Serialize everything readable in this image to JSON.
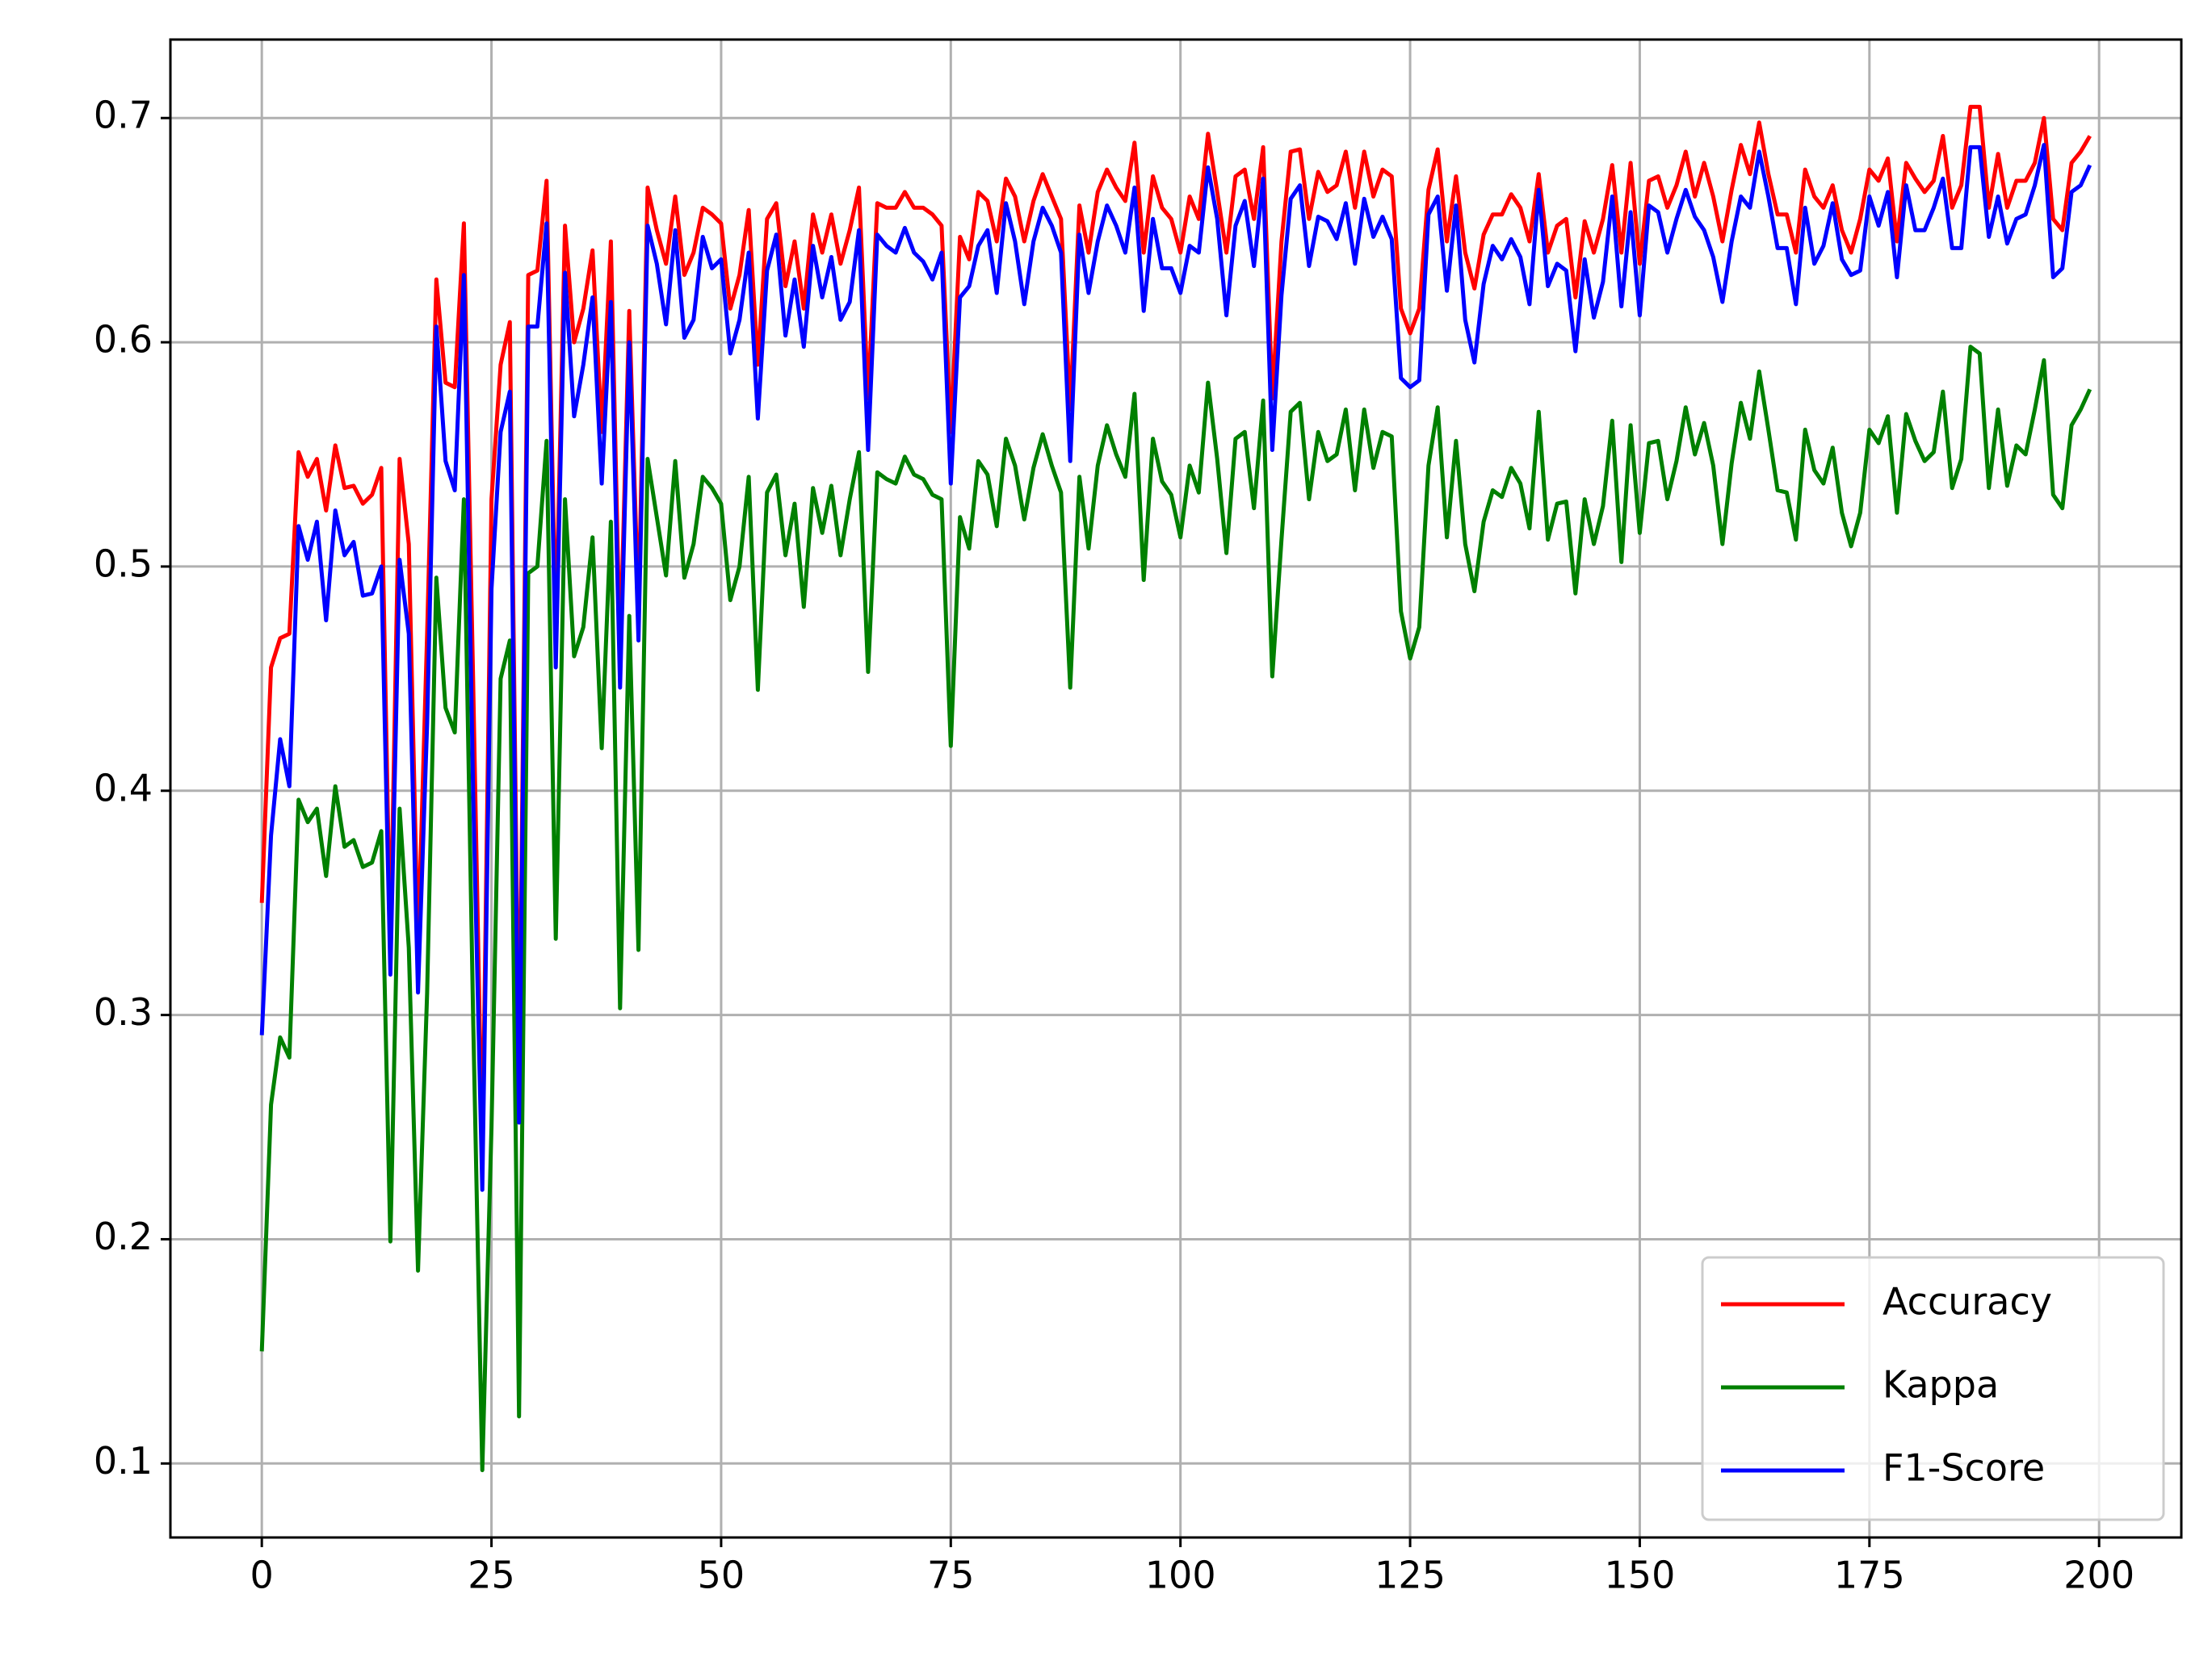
{
  "chart_data": {
    "type": "line",
    "x": [
      0,
      1,
      2,
      3,
      4,
      5,
      6,
      7,
      8,
      9,
      10,
      11,
      12,
      13,
      14,
      15,
      16,
      17,
      18,
      19,
      20,
      21,
      22,
      23,
      24,
      25,
      26,
      27,
      28,
      29,
      30,
      31,
      32,
      33,
      34,
      35,
      36,
      37,
      38,
      39,
      40,
      41,
      42,
      43,
      44,
      45,
      46,
      47,
      48,
      49,
      50,
      51,
      52,
      53,
      54,
      55,
      56,
      57,
      58,
      59,
      60,
      61,
      62,
      63,
      64,
      65,
      66,
      67,
      68,
      69,
      70,
      71,
      72,
      73,
      74,
      75,
      76,
      77,
      78,
      79,
      80,
      81,
      82,
      83,
      84,
      85,
      86,
      87,
      88,
      89,
      90,
      91,
      92,
      93,
      94,
      95,
      96,
      97,
      98,
      99,
      100,
      101,
      102,
      103,
      104,
      105,
      106,
      107,
      108,
      109,
      110,
      111,
      112,
      113,
      114,
      115,
      116,
      117,
      118,
      119,
      120,
      121,
      122,
      123,
      124,
      125,
      126,
      127,
      128,
      129,
      130,
      131,
      132,
      133,
      134,
      135,
      136,
      137,
      138,
      139,
      140,
      141,
      142,
      143,
      144,
      145,
      146,
      147,
      148,
      149,
      150,
      151,
      152,
      153,
      154,
      155,
      156,
      157,
      158,
      159,
      160,
      161,
      162,
      163,
      164,
      165,
      166,
      167,
      168,
      169,
      170,
      171,
      172,
      173,
      174,
      175,
      176,
      177,
      178,
      179,
      180,
      181,
      182,
      183,
      184,
      185,
      186,
      187,
      188,
      189,
      190,
      191,
      192,
      193,
      194,
      195,
      196,
      197,
      198,
      199
    ],
    "series": [
      {
        "name": "Accuracy",
        "color": "#ff0000",
        "values": [
          0.35,
          0.455,
          0.468,
          0.47,
          0.551,
          0.54,
          0.548,
          0.525,
          0.554,
          0.535,
          0.536,
          0.528,
          0.532,
          0.544,
          0.33,
          0.548,
          0.51,
          0.33,
          0.47,
          0.628,
          0.582,
          0.58,
          0.653,
          0.45,
          0.235,
          0.53,
          0.59,
          0.609,
          0.27,
          0.63,
          0.632,
          0.672,
          0.47,
          0.652,
          0.6,
          0.615,
          0.641,
          0.56,
          0.645,
          0.46,
          0.614,
          0.48,
          0.669,
          0.65,
          0.635,
          0.665,
          0.63,
          0.64,
          0.66,
          0.657,
          0.653,
          0.615,
          0.63,
          0.659,
          0.59,
          0.655,
          0.662,
          0.625,
          0.645,
          0.615,
          0.657,
          0.64,
          0.657,
          0.635,
          0.65,
          0.669,
          0.575,
          0.662,
          0.66,
          0.66,
          0.667,
          0.66,
          0.66,
          0.657,
          0.652,
          0.56,
          0.647,
          0.637,
          0.667,
          0.663,
          0.645,
          0.673,
          0.665,
          0.645,
          0.663,
          0.675,
          0.665,
          0.655,
          0.57,
          0.661,
          0.64,
          0.667,
          0.677,
          0.669,
          0.663,
          0.689,
          0.64,
          0.674,
          0.66,
          0.655,
          0.64,
          0.665,
          0.655,
          0.693,
          0.667,
          0.64,
          0.674,
          0.677,
          0.655,
          0.687,
          0.575,
          0.645,
          0.685,
          0.686,
          0.655,
          0.676,
          0.667,
          0.67,
          0.685,
          0.66,
          0.685,
          0.665,
          0.677,
          0.674,
          0.615,
          0.604,
          0.615,
          0.668,
          0.686,
          0.645,
          0.674,
          0.64,
          0.624,
          0.648,
          0.657,
          0.657,
          0.666,
          0.66,
          0.645,
          0.675,
          0.64,
          0.652,
          0.655,
          0.62,
          0.654,
          0.64,
          0.655,
          0.679,
          0.64,
          0.68,
          0.635,
          0.672,
          0.674,
          0.66,
          0.67,
          0.685,
          0.665,
          0.68,
          0.665,
          0.645,
          0.668,
          0.688,
          0.675,
          0.698,
          0.675,
          0.657,
          0.657,
          0.64,
          0.677,
          0.665,
          0.66,
          0.67,
          0.65,
          0.64,
          0.655,
          0.677,
          0.672,
          0.682,
          0.645,
          0.68,
          0.673,
          0.667,
          0.672,
          0.692,
          0.66,
          0.67,
          0.705,
          0.705,
          0.66,
          0.684,
          0.66,
          0.672,
          0.672,
          0.68,
          0.7,
          0.655,
          0.65,
          0.68,
          0.685,
          0.692
        ]
      },
      {
        "name": "Kappa",
        "color": "#008000",
        "values": [
          0.15,
          0.26,
          0.29,
          0.281,
          0.396,
          0.386,
          0.392,
          0.362,
          0.402,
          0.375,
          0.378,
          0.366,
          0.368,
          0.382,
          0.199,
          0.392,
          0.33,
          0.186,
          0.31,
          0.495,
          0.437,
          0.426,
          0.53,
          0.3,
          0.097,
          0.25,
          0.45,
          0.467,
          0.121,
          0.497,
          0.5,
          0.556,
          0.334,
          0.53,
          0.46,
          0.473,
          0.513,
          0.419,
          0.52,
          0.303,
          0.478,
          0.329,
          0.548,
          0.522,
          0.496,
          0.547,
          0.495,
          0.51,
          0.54,
          0.535,
          0.528,
          0.485,
          0.5,
          0.54,
          0.445,
          0.533,
          0.541,
          0.505,
          0.528,
          0.482,
          0.535,
          0.515,
          0.536,
          0.505,
          0.53,
          0.551,
          0.453,
          0.542,
          0.539,
          0.537,
          0.549,
          0.541,
          0.539,
          0.532,
          0.53,
          0.42,
          0.522,
          0.508,
          0.547,
          0.541,
          0.518,
          0.557,
          0.545,
          0.521,
          0.544,
          0.559,
          0.545,
          0.533,
          0.446,
          0.54,
          0.508,
          0.545,
          0.563,
          0.55,
          0.54,
          0.577,
          0.494,
          0.557,
          0.538,
          0.532,
          0.513,
          0.545,
          0.533,
          0.582,
          0.548,
          0.506,
          0.557,
          0.56,
          0.526,
          0.574,
          0.451,
          0.512,
          0.569,
          0.573,
          0.53,
          0.56,
          0.547,
          0.55,
          0.57,
          0.534,
          0.57,
          0.544,
          0.56,
          0.558,
          0.48,
          0.459,
          0.473,
          0.545,
          0.571,
          0.513,
          0.556,
          0.51,
          0.489,
          0.52,
          0.534,
          0.531,
          0.544,
          0.537,
          0.517,
          0.569,
          0.512,
          0.528,
          0.529,
          0.488,
          0.53,
          0.51,
          0.527,
          0.565,
          0.502,
          0.563,
          0.515,
          0.555,
          0.556,
          0.53,
          0.547,
          0.571,
          0.55,
          0.564,
          0.545,
          0.51,
          0.546,
          0.573,
          0.557,
          0.587,
          0.561,
          0.534,
          0.533,
          0.512,
          0.561,
          0.543,
          0.537,
          0.553,
          0.524,
          0.509,
          0.524,
          0.561,
          0.555,
          0.567,
          0.524,
          0.568,
          0.556,
          0.547,
          0.551,
          0.578,
          0.535,
          0.548,
          0.598,
          0.595,
          0.535,
          0.57,
          0.536,
          0.554,
          0.55,
          0.57,
          0.592,
          0.532,
          0.526,
          0.563,
          0.57,
          0.579
        ]
      },
      {
        "name": "F1-Score",
        "color": "#0000ff",
        "values": [
          0.291,
          0.38,
          0.423,
          0.402,
          0.518,
          0.503,
          0.52,
          0.476,
          0.525,
          0.505,
          0.511,
          0.487,
          0.488,
          0.5,
          0.318,
          0.503,
          0.47,
          0.31,
          0.43,
          0.607,
          0.547,
          0.534,
          0.63,
          0.4,
          0.222,
          0.49,
          0.56,
          0.578,
          0.252,
          0.607,
          0.607,
          0.653,
          0.455,
          0.631,
          0.567,
          0.59,
          0.62,
          0.537,
          0.618,
          0.446,
          0.6,
          0.467,
          0.652,
          0.635,
          0.608,
          0.65,
          0.602,
          0.61,
          0.647,
          0.633,
          0.637,
          0.595,
          0.61,
          0.64,
          0.566,
          0.632,
          0.648,
          0.603,
          0.628,
          0.598,
          0.643,
          0.62,
          0.638,
          0.61,
          0.618,
          0.65,
          0.552,
          0.648,
          0.643,
          0.64,
          0.651,
          0.64,
          0.636,
          0.628,
          0.64,
          0.537,
          0.62,
          0.625,
          0.643,
          0.65,
          0.622,
          0.662,
          0.645,
          0.617,
          0.645,
          0.66,
          0.652,
          0.64,
          0.547,
          0.648,
          0.622,
          0.645,
          0.661,
          0.652,
          0.64,
          0.669,
          0.614,
          0.655,
          0.633,
          0.633,
          0.622,
          0.643,
          0.64,
          0.678,
          0.655,
          0.612,
          0.652,
          0.663,
          0.634,
          0.673,
          0.552,
          0.621,
          0.664,
          0.67,
          0.634,
          0.656,
          0.654,
          0.646,
          0.662,
          0.635,
          0.664,
          0.647,
          0.656,
          0.646,
          0.584,
          0.58,
          0.583,
          0.657,
          0.665,
          0.623,
          0.661,
          0.61,
          0.591,
          0.626,
          0.643,
          0.637,
          0.646,
          0.638,
          0.617,
          0.668,
          0.625,
          0.635,
          0.632,
          0.596,
          0.637,
          0.611,
          0.627,
          0.665,
          0.616,
          0.658,
          0.612,
          0.661,
          0.658,
          0.64,
          0.655,
          0.668,
          0.656,
          0.65,
          0.638,
          0.618,
          0.645,
          0.665,
          0.66,
          0.685,
          0.665,
          0.642,
          0.642,
          0.617,
          0.66,
          0.635,
          0.643,
          0.662,
          0.637,
          0.63,
          0.632,
          0.665,
          0.652,
          0.667,
          0.629,
          0.67,
          0.65,
          0.65,
          0.66,
          0.673,
          0.642,
          0.642,
          0.687,
          0.687,
          0.647,
          0.665,
          0.644,
          0.655,
          0.657,
          0.67,
          0.688,
          0.629,
          0.633,
          0.667,
          0.67,
          0.679
        ]
      }
    ],
    "xlim": [
      -9.95,
      208.95
    ],
    "xticks": [
      0,
      25,
      50,
      75,
      100,
      125,
      150,
      175,
      200
    ],
    "ylim": [
      0.067,
      0.735
    ],
    "yticks": [
      0.1,
      0.2,
      0.3,
      0.4,
      0.5,
      0.6,
      0.7
    ],
    "grid": true,
    "legend": "lower right"
  }
}
